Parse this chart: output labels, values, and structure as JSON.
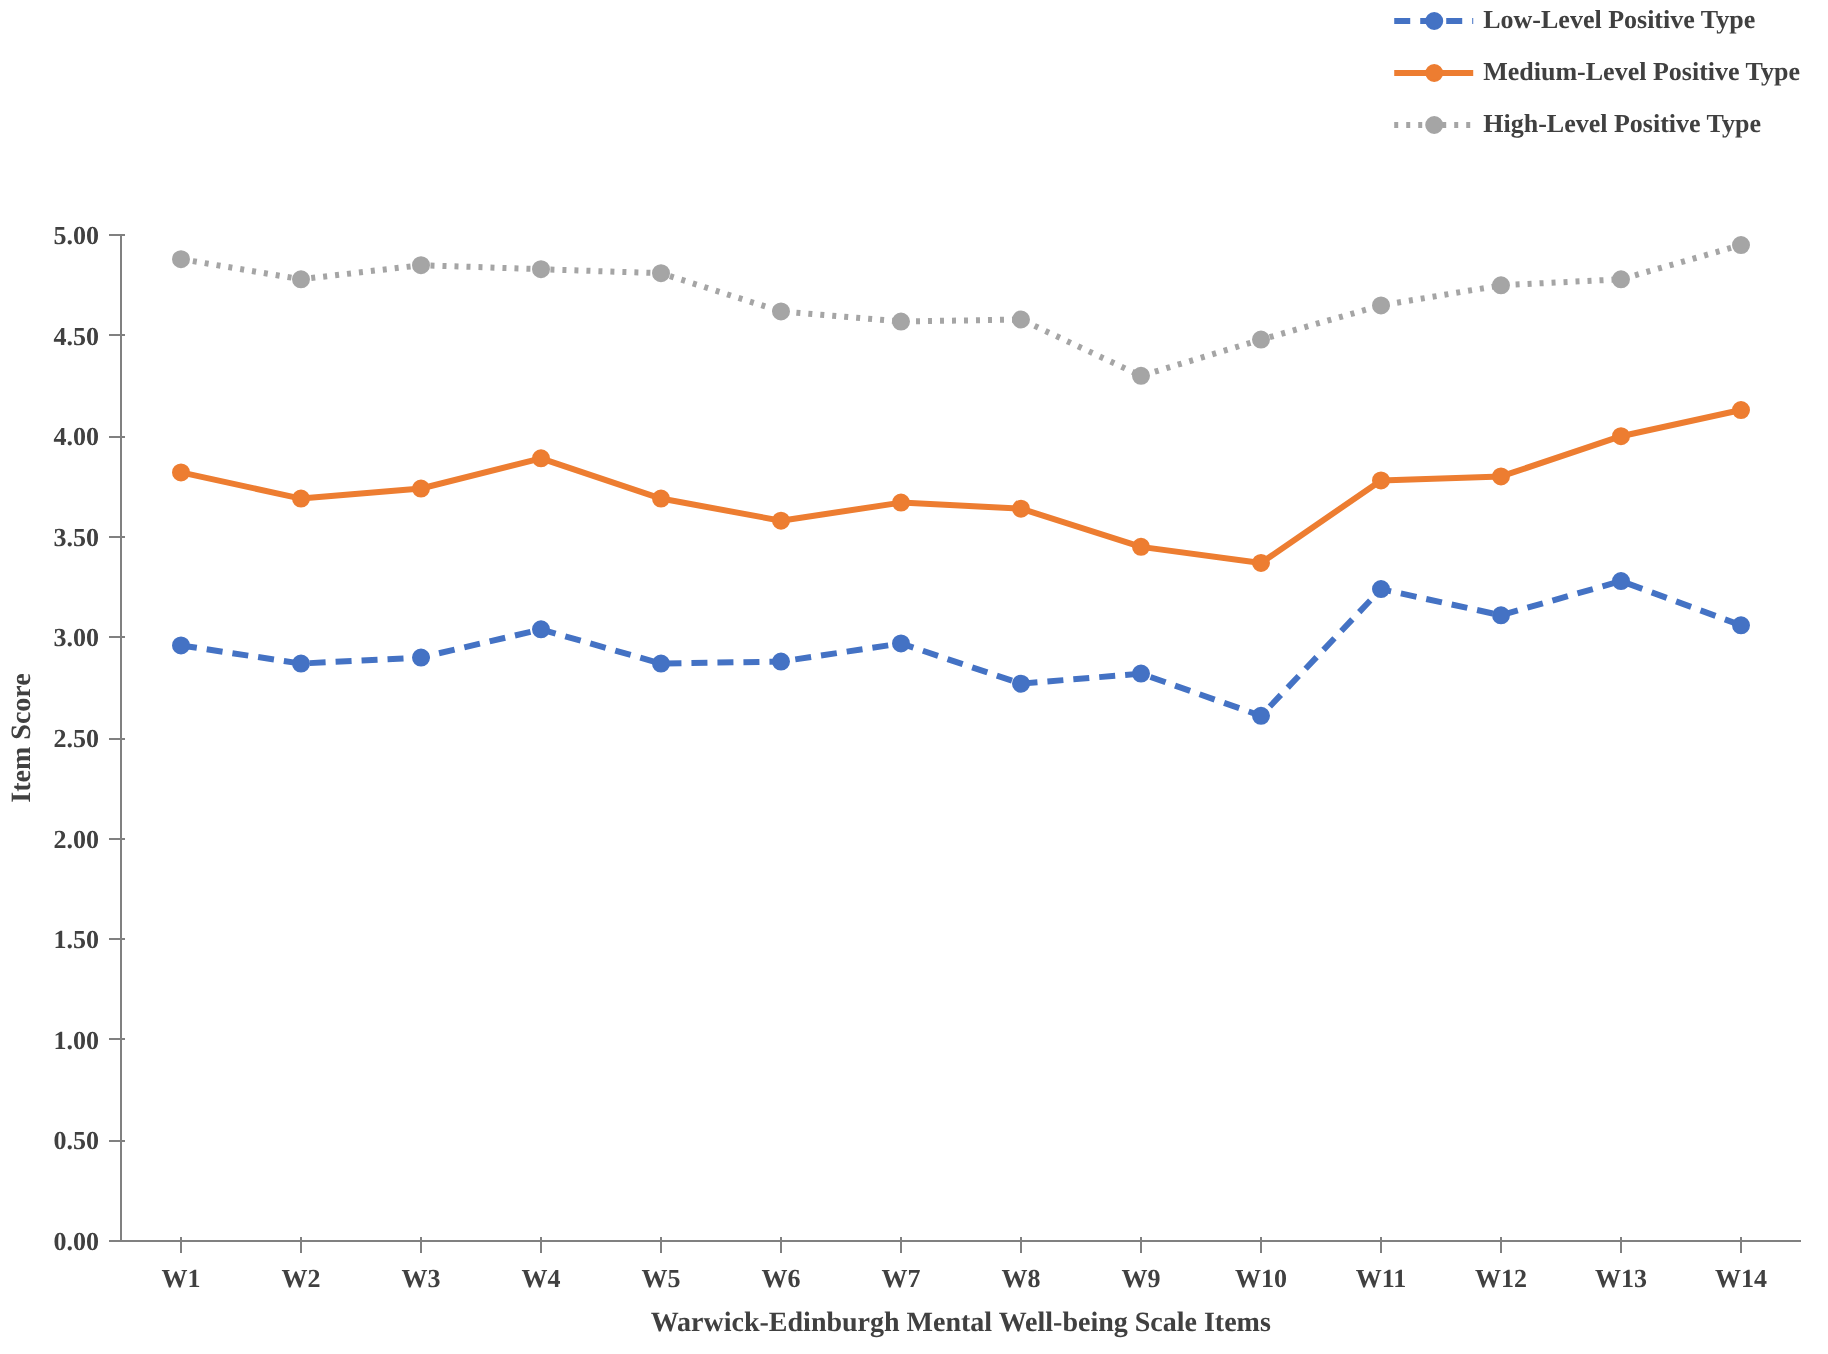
{
  "chart_data": {
    "type": "line",
    "xlabel": "Warwick-Edinburgh Mental Well-being Scale Items",
    "ylabel": "Item Score",
    "categories": [
      "W1",
      "W2",
      "W3",
      "W4",
      "W5",
      "W6",
      "W7",
      "W8",
      "W9",
      "W10",
      "W11",
      "W12",
      "W13",
      "W14"
    ],
    "series": [
      {
        "name": "Low-Level Positive Type",
        "color": "#4472c4",
        "line_style": "dashed",
        "values": [
          2.96,
          2.87,
          2.9,
          3.04,
          2.87,
          2.88,
          2.97,
          2.77,
          2.82,
          2.61,
          3.24,
          3.11,
          3.28,
          3.06
        ]
      },
      {
        "name": "Medium-Level Positive Type",
        "color": "#ed7d31",
        "line_style": "solid",
        "values": [
          3.82,
          3.69,
          3.74,
          3.89,
          3.69,
          3.58,
          3.67,
          3.64,
          3.45,
          3.37,
          3.78,
          3.8,
          4.0,
          4.13
        ]
      },
      {
        "name": "High-Level Positive Type",
        "color": "#a5a5a5",
        "line_style": "dotted",
        "values": [
          4.88,
          4.78,
          4.85,
          4.83,
          4.81,
          4.62,
          4.57,
          4.58,
          4.3,
          4.48,
          4.65,
          4.75,
          4.78,
          4.95
        ]
      }
    ],
    "ylim": [
      0,
      5
    ],
    "yticks": [
      {
        "value": 0,
        "label": "0.00"
      },
      {
        "value": 0.5,
        "label": "0.50"
      },
      {
        "value": 1,
        "label": "1.00"
      },
      {
        "value": 1.5,
        "label": "1.50"
      },
      {
        "value": 2,
        "label": "2.00"
      },
      {
        "value": 2.5,
        "label": "2.50"
      },
      {
        "value": 3,
        "label": "3.00"
      },
      {
        "value": 3.5,
        "label": "3.50"
      },
      {
        "value": 4,
        "label": "4.00"
      },
      {
        "value": 4.5,
        "label": "4.50"
      },
      {
        "value": 5,
        "label": "5.00"
      }
    ],
    "grid": false,
    "legend": "top right",
    "marker": "circle"
  }
}
